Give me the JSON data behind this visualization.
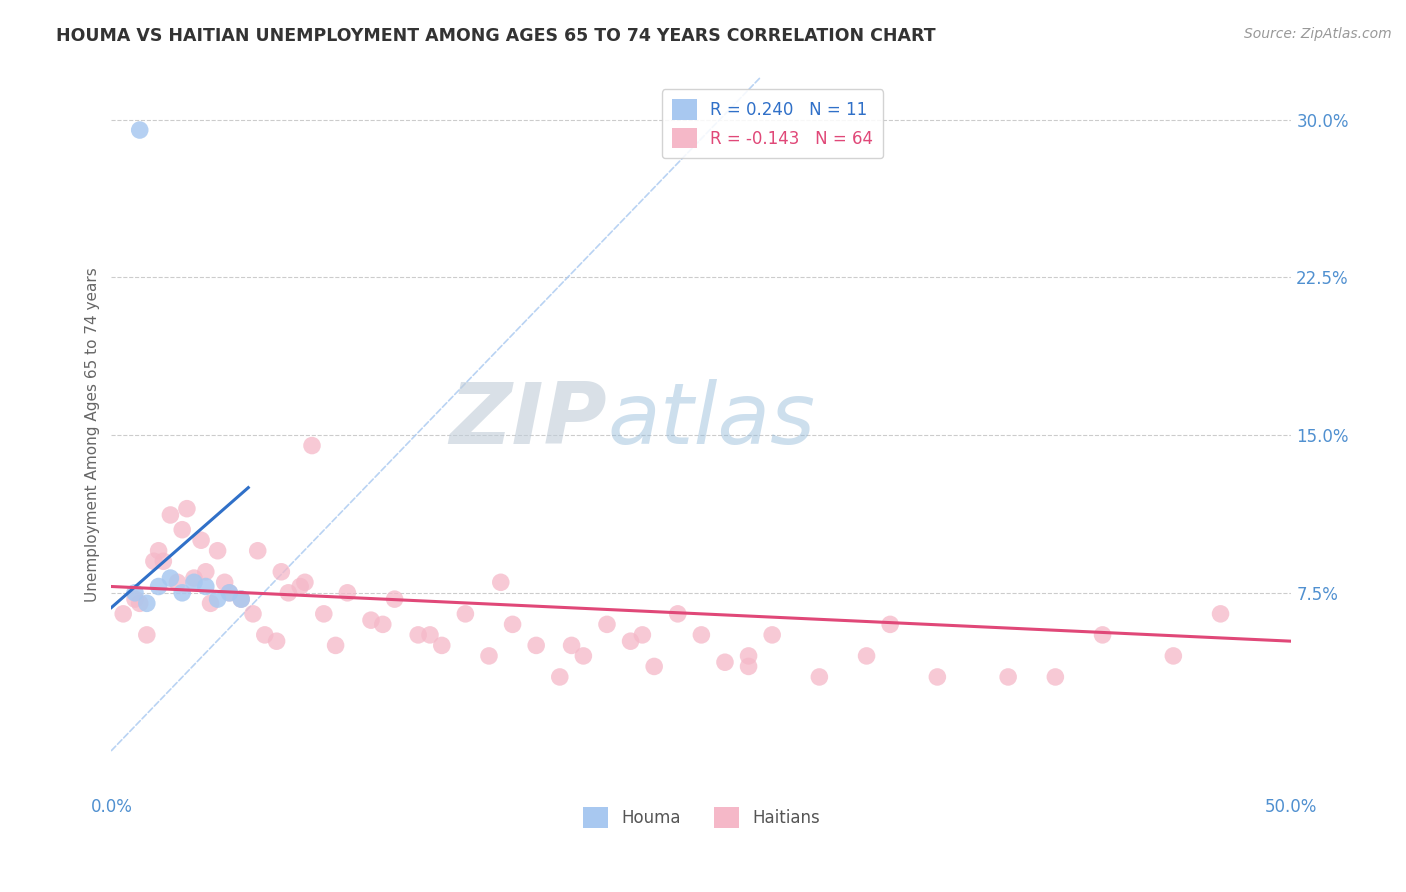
{
  "title": "HOUMA VS HAITIAN UNEMPLOYMENT AMONG AGES 65 TO 74 YEARS CORRELATION CHART",
  "source": "Source: ZipAtlas.com",
  "ylabel_label": "Unemployment Among Ages 65 to 74 years",
  "xlim": [
    0.0,
    50.0
  ],
  "ylim": [
    -2.0,
    32.0
  ],
  "yticks": [
    0.0,
    7.5,
    15.0,
    22.5,
    30.0
  ],
  "ytick_labels": [
    "",
    "7.5%",
    "15.0%",
    "22.5%",
    "30.0%"
  ],
  "xtick_vals": [
    0.0,
    50.0
  ],
  "xtick_labels": [
    "0.0%",
    "50.0%"
  ],
  "houma_R": 0.24,
  "houma_N": 11,
  "haitian_R": -0.143,
  "haitian_N": 64,
  "houma_color": "#a8c8f0",
  "haitian_color": "#f5b8c8",
  "houma_line_color": "#3070c8",
  "haitian_line_color": "#e04878",
  "ref_line_color": "#a8c8f0",
  "background_color": "#ffffff",
  "watermark_zip": "ZIP",
  "watermark_atlas": "atlas",
  "watermark_zip_color": "#c8d8e8",
  "watermark_atlas_color": "#a8c8e8",
  "houma_scatter_x": [
    1.0,
    1.5,
    2.0,
    2.5,
    3.0,
    3.5,
    4.0,
    4.5,
    5.0,
    5.5,
    1.2
  ],
  "houma_scatter_y": [
    7.5,
    7.0,
    7.8,
    8.2,
    7.5,
    8.0,
    7.8,
    7.2,
    7.5,
    7.2,
    29.5
  ],
  "haitian_scatter_x": [
    0.5,
    1.0,
    1.5,
    2.0,
    2.5,
    3.0,
    3.5,
    4.0,
    4.5,
    5.0,
    5.5,
    6.0,
    6.5,
    7.0,
    7.5,
    8.0,
    8.5,
    9.0,
    10.0,
    11.0,
    12.0,
    13.0,
    14.0,
    15.0,
    16.0,
    17.0,
    18.0,
    19.0,
    20.0,
    21.0,
    22.0,
    23.0,
    24.0,
    25.0,
    26.0,
    27.0,
    28.0,
    30.0,
    32.0,
    35.0,
    38.0,
    42.0,
    45.0,
    47.0,
    2.2,
    2.8,
    3.2,
    3.8,
    4.2,
    4.8,
    1.2,
    1.8,
    6.2,
    7.2,
    8.2,
    9.5,
    11.5,
    13.5,
    16.5,
    19.5,
    22.5,
    27.0,
    33.0,
    40.0
  ],
  "haitian_scatter_y": [
    6.5,
    7.2,
    5.5,
    9.5,
    11.2,
    10.5,
    8.2,
    8.5,
    9.5,
    7.5,
    7.2,
    6.5,
    5.5,
    5.2,
    7.5,
    7.8,
    14.5,
    6.5,
    7.5,
    6.2,
    7.2,
    5.5,
    5.0,
    6.5,
    4.5,
    6.0,
    5.0,
    3.5,
    4.5,
    6.0,
    5.2,
    4.0,
    6.5,
    5.5,
    4.2,
    4.5,
    5.5,
    3.5,
    4.5,
    3.5,
    3.5,
    5.5,
    4.5,
    6.5,
    9.0,
    8.0,
    11.5,
    10.0,
    7.0,
    8.0,
    7.0,
    9.0,
    9.5,
    8.5,
    8.0,
    5.0,
    6.0,
    5.5,
    8.0,
    5.0,
    5.5,
    4.0,
    6.0,
    3.5
  ],
  "houma_reg_x0": 0.0,
  "houma_reg_y0": 6.8,
  "houma_reg_x1": 5.8,
  "houma_reg_y1": 12.5,
  "haitian_reg_x0": 0.0,
  "haitian_reg_y0": 7.8,
  "haitian_reg_x1": 50.0,
  "haitian_reg_y1": 5.2
}
